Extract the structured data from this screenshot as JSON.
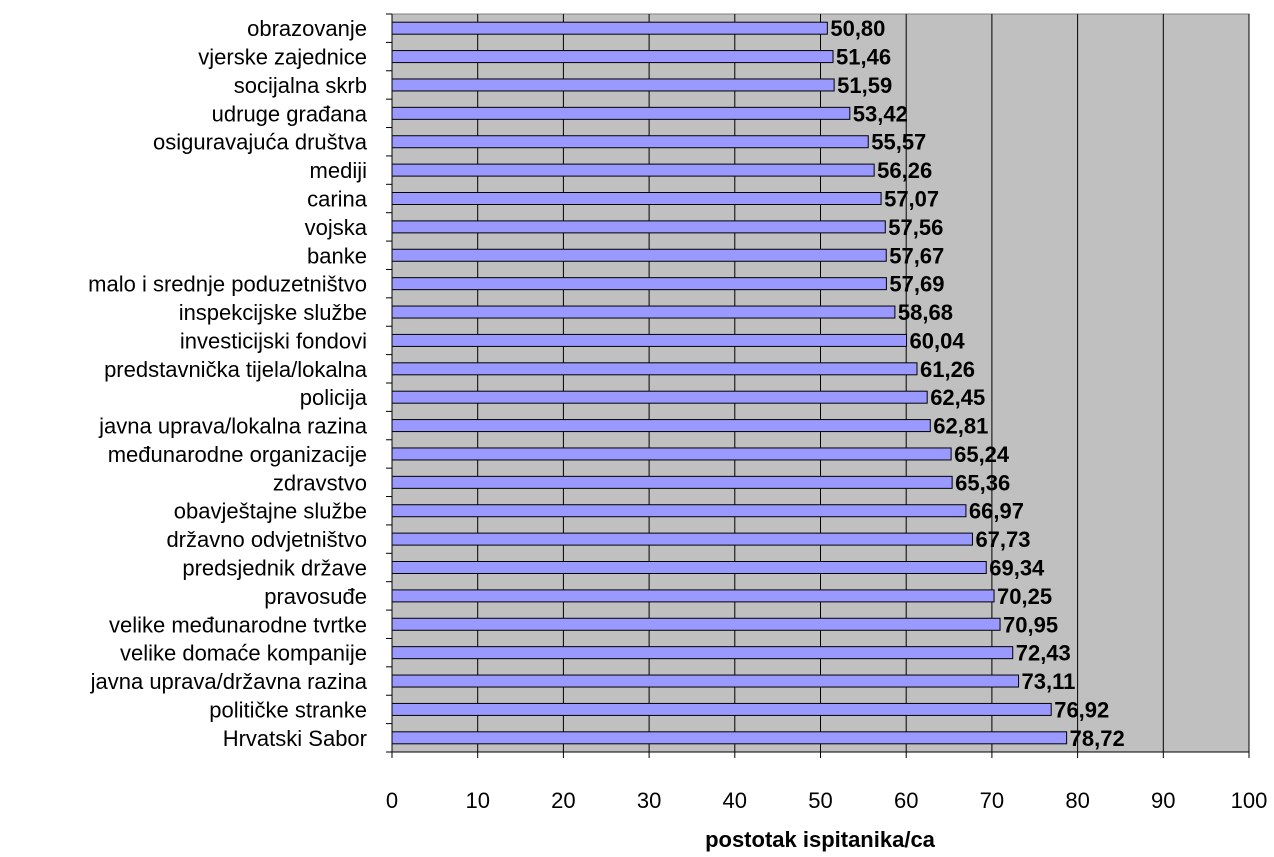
{
  "chart_data": {
    "type": "bar",
    "orientation": "horizontal",
    "categories": [
      "obrazovanje",
      "vjerske zajednice",
      "socijalna skrb",
      "udruge građana",
      "osiguravajuća društva",
      "mediji",
      "carina",
      "vojska",
      "banke",
      "malo i srednje poduzetništvo",
      "inspekcijske službe",
      "investicijski fondovi",
      "predstavnička tijela/lokalna",
      "policija",
      "javna uprava/lokalna razina",
      "međunarodne organizacije",
      "zdravstvo",
      "obavještajne službe",
      "državno odvjetništvo",
      "predsjednik države",
      "pravosuđe",
      "velike međunarodne tvrtke",
      "velike domaće kompanije",
      "javna uprava/državna razina",
      "političke stranke",
      "Hrvatski Sabor"
    ],
    "values": [
      50.8,
      51.46,
      51.59,
      53.42,
      55.57,
      56.26,
      57.07,
      57.56,
      57.67,
      57.69,
      58.68,
      60.04,
      61.26,
      62.45,
      62.81,
      65.24,
      65.36,
      66.97,
      67.73,
      69.34,
      70.25,
      70.95,
      72.43,
      73.11,
      76.92,
      78.72
    ],
    "value_labels": [
      "50,80",
      "51,46",
      "51,59",
      "53,42",
      "55,57",
      "56,26",
      "57,07",
      "57,56",
      "57,67",
      "57,69",
      "58,68",
      "60,04",
      "61,26",
      "62,45",
      "62,81",
      "65,24",
      "65,36",
      "66,97",
      "67,73",
      "69,34",
      "70,25",
      "70,95",
      "72,43",
      "73,11",
      "76,92",
      "78,72"
    ],
    "xlabel": "postotak ispitanika/ca",
    "xlim": [
      0,
      100
    ],
    "xticks": [
      0,
      10,
      20,
      30,
      40,
      50,
      60,
      70,
      80,
      90,
      100
    ],
    "grid": true,
    "colors": {
      "bar_fill": "#9999ff",
      "bar_stroke": "#000000",
      "plot_background": "#c0c0c0",
      "gridline": "#000000"
    }
  }
}
